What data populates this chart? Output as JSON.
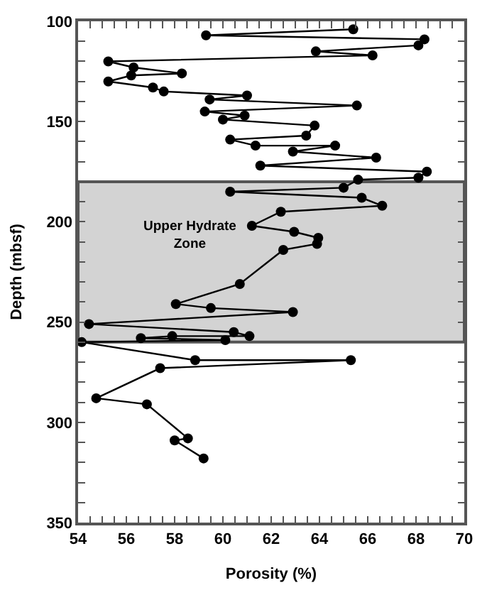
{
  "chart_data": {
    "type": "line",
    "xlabel": "Porosity (%)",
    "ylabel": "Depth (mbsf)",
    "series": [
      {
        "color": "#000000",
        "x": [
          65.4,
          59.3,
          68.35,
          68.1,
          63.85,
          66.2,
          55.25,
          56.3,
          58.3,
          56.2,
          55.25,
          57.1,
          57.55,
          61.0,
          59.45,
          65.55,
          59.25,
          60.9,
          60.0,
          63.8,
          63.45,
          60.3,
          61.35,
          64.65,
          62.9,
          66.35,
          61.55,
          68.45,
          68.1,
          65.6,
          65.0,
          60.3,
          65.75,
          66.6,
          62.4,
          61.2,
          62.95,
          63.95,
          63.9,
          62.5,
          60.7,
          58.05,
          59.5,
          62.9,
          54.45,
          60.45,
          61.1,
          57.9,
          56.6,
          60.1,
          54.15,
          58.85,
          65.3,
          57.4,
          54.75,
          56.85,
          58.55,
          58.0,
          59.2
        ],
        "values": [
          104,
          107,
          109,
          112,
          115,
          117,
          120,
          123,
          126,
          127,
          130,
          133,
          135,
          137,
          139,
          142,
          145,
          147,
          149,
          152,
          157,
          159,
          162,
          162,
          165,
          168,
          172,
          175,
          178,
          179,
          183,
          185,
          188,
          192,
          195,
          202,
          205,
          208,
          211,
          214,
          231,
          241,
          243,
          245,
          251,
          255,
          257,
          257,
          258,
          259,
          260,
          269,
          269,
          273,
          288,
          291,
          308,
          309,
          318
        ]
      }
    ],
    "xlim": [
      54,
      70
    ],
    "xticks": [
      54,
      {
        "value": 54.5,
        "label": null
      },
      {
        "value": 55,
        "label": null
      },
      {
        "value": 55.5,
        "label": null
      },
      56,
      {
        "value": 56.5,
        "label": null
      },
      {
        "value": 57,
        "label": null
      },
      {
        "value": 57.5,
        "label": null
      },
      58,
      {
        "value": 58.5,
        "label": null
      },
      {
        "value": 59,
        "label": null
      },
      {
        "value": 59.5,
        "label": null
      },
      60,
      {
        "value": 60.5,
        "label": null
      },
      {
        "value": 61,
        "label": null
      },
      {
        "value": 61.5,
        "label": null
      },
      62,
      {
        "value": 62.5,
        "label": null
      },
      {
        "value": 63,
        "label": null
      },
      {
        "value": 63.5,
        "label": null
      },
      64,
      {
        "value": 64.5,
        "label": null
      },
      {
        "value": 65,
        "label": null
      },
      {
        "value": 65.5,
        "label": null
      },
      66,
      {
        "value": 66.5,
        "label": null
      },
      {
        "value": 67,
        "label": null
      },
      {
        "value": 67.5,
        "label": null
      },
      68,
      {
        "value": 68.5,
        "label": null
      },
      {
        "value": 69,
        "label": null
      },
      {
        "value": 69.5,
        "label": null
      },
      70
    ],
    "ylim": [
      350,
      100
    ],
    "yticks": [
      100,
      {
        "value": 110,
        "label": null
      },
      {
        "value": 120,
        "label": null
      },
      {
        "value": 130,
        "label": null
      },
      {
        "value": 140,
        "label": null
      },
      150,
      {
        "value": 160,
        "label": null
      },
      {
        "value": 170,
        "label": null
      },
      {
        "value": 180,
        "label": null
      },
      {
        "value": 190,
        "label": null
      },
      200,
      {
        "value": 210,
        "label": null
      },
      {
        "value": 220,
        "label": null
      },
      {
        "value": 230,
        "label": null
      },
      {
        "value": 240,
        "label": null
      },
      250,
      {
        "value": 260,
        "label": null
      },
      {
        "value": 270,
        "label": null
      },
      {
        "value": 280,
        "label": null
      },
      {
        "value": 290,
        "label": null
      },
      300,
      {
        "value": 310,
        "label": null
      },
      {
        "value": 320,
        "label": null
      },
      {
        "value": 330,
        "label": null
      },
      {
        "value": 340,
        "label": null
      },
      350
    ],
    "bands": [
      {
        "axis": "y",
        "from": 180,
        "to": 260,
        "label": "Upper Hydrate\nZone",
        "color": "#d3d3d3"
      }
    ],
    "marker": "circle",
    "line_style": "solid"
  }
}
